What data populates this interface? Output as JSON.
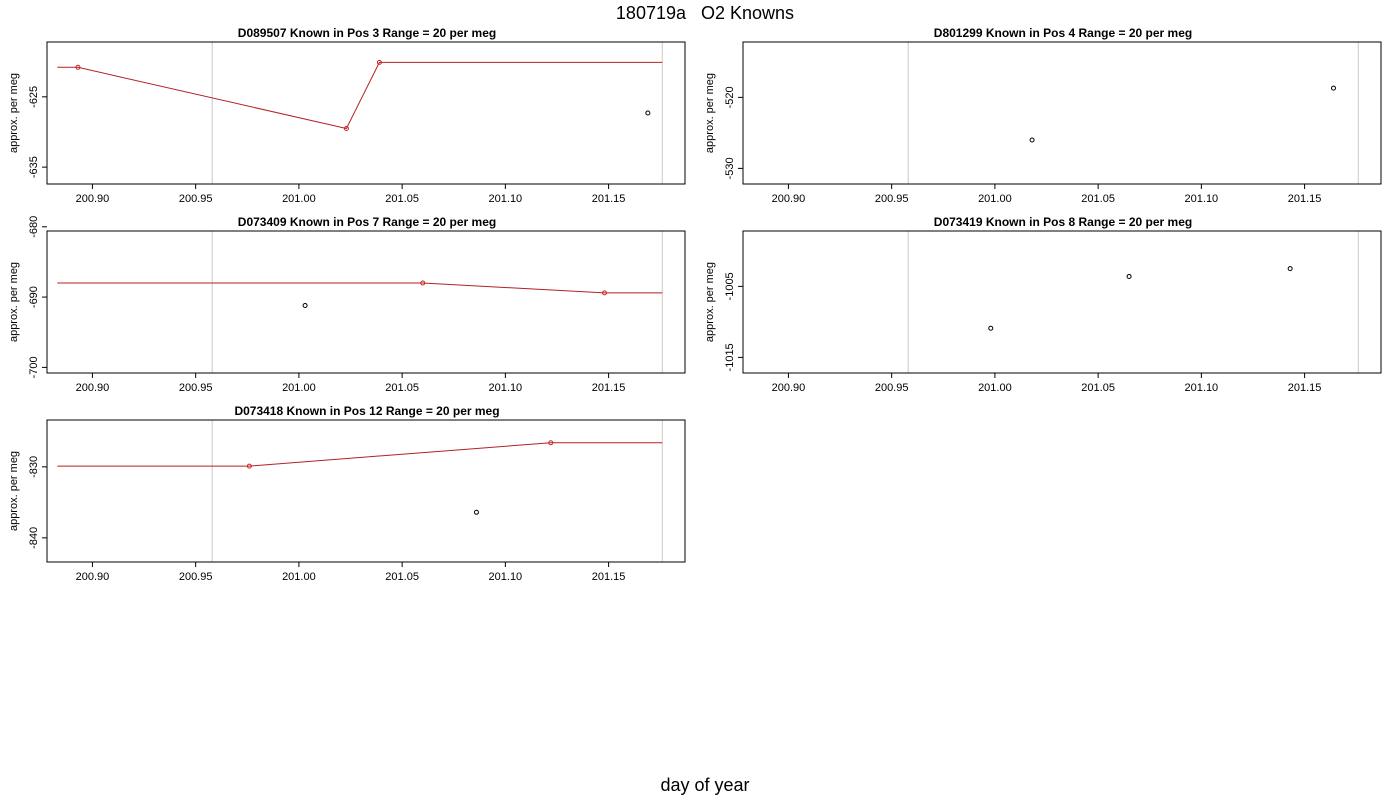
{
  "page": {
    "title": "180719a   O2 Knowns",
    "xlabel": "day of year"
  },
  "colors": {
    "line": "#b22222",
    "point_fit": "#cc2222",
    "point_meas": "#000000",
    "vline": "#c8c8c8",
    "axis": "#000000"
  },
  "chart_data": [
    {
      "type": "line",
      "title": "D089507    Known in Pos 3          Range = 20 per meg",
      "ylabel": "approx. per meg",
      "xlim": [
        200.878,
        201.187
      ],
      "ylim": [
        -637.4,
        -617.2
      ],
      "xticks": [
        "200.90",
        "200.95",
        "201.00",
        "201.05",
        "201.10",
        "201.15"
      ],
      "xtick_values": [
        200.9,
        200.95,
        201.0,
        201.05,
        201.1,
        201.15
      ],
      "yticks": [
        "-625",
        "-635"
      ],
      "ytick_values": [
        -625,
        -635
      ],
      "vlines": [
        200.958,
        201.176
      ],
      "line_x": [
        200.883,
        200.893,
        201.023,
        201.039,
        201.176
      ],
      "line_y": [
        -620.8,
        -620.8,
        -629.5,
        -620.1,
        -620.1
      ],
      "fit_points_x": [
        200.893,
        201.023,
        201.039
      ],
      "fit_points_y": [
        -620.8,
        -629.5,
        -620.1
      ],
      "meas_points_x": [
        201.169
      ],
      "meas_points_y": [
        -627.3
      ]
    },
    {
      "type": "scatter",
      "title": "D801299    Known in Pos 4          Range = 20 per meg",
      "ylabel": "approx. per meg",
      "xlim": [
        200.878,
        201.187
      ],
      "ylim": [
        -532.2,
        -512.2
      ],
      "xticks": [
        "200.90",
        "200.95",
        "201.00",
        "201.05",
        "201.10",
        "201.15"
      ],
      "xtick_values": [
        200.9,
        200.95,
        201.0,
        201.05,
        201.1,
        201.15
      ],
      "yticks": [
        "-520",
        "-530"
      ],
      "ytick_values": [
        -520,
        -530
      ],
      "vlines": [
        200.958,
        201.176
      ],
      "line_x": [],
      "line_y": [],
      "fit_points_x": [],
      "fit_points_y": [],
      "meas_points_x": [
        201.018,
        201.164
      ],
      "meas_points_y": [
        -526.0,
        -518.7
      ]
    },
    {
      "type": "line",
      "title": "D073409    Known in Pos 7          Range = 20 per meg",
      "ylabel": "approx. per meg",
      "xlim": [
        200.878,
        201.187
      ],
      "ylim": [
        -700.8,
        -680.6
      ],
      "xticks": [
        "200.90",
        "200.95",
        "201.00",
        "201.05",
        "201.10",
        "201.15"
      ],
      "xtick_values": [
        200.9,
        200.95,
        201.0,
        201.05,
        201.1,
        201.15
      ],
      "yticks": [
        "-680",
        "-690",
        "-700"
      ],
      "ytick_values": [
        -680,
        -690,
        -700
      ],
      "vlines": [
        200.958,
        201.176
      ],
      "line_x": [
        200.883,
        201.06,
        201.148,
        201.176
      ],
      "line_y": [
        -688.0,
        -688.0,
        -689.4,
        -689.4
      ],
      "fit_points_x": [
        201.06,
        201.148
      ],
      "fit_points_y": [
        -688.0,
        -689.4
      ],
      "meas_points_x": [
        201.003
      ],
      "meas_points_y": [
        -691.2
      ]
    },
    {
      "type": "scatter",
      "title": "D073419    Known in Pos 8          Range = 20 per meg",
      "ylabel": "approx. per meg",
      "xlim": [
        200.878,
        201.187
      ],
      "ylim": [
        -1017.2,
        -997.2
      ],
      "xticks": [
        "200.90",
        "200.95",
        "201.00",
        "201.05",
        "201.10",
        "201.15"
      ],
      "xtick_values": [
        200.9,
        200.95,
        201.0,
        201.05,
        201.1,
        201.15
      ],
      "yticks": [
        "-1005",
        "-1015"
      ],
      "ytick_values": [
        -1005,
        -1015
      ],
      "vlines": [
        200.958,
        201.176
      ],
      "line_x": [],
      "line_y": [],
      "fit_points_x": [],
      "fit_points_y": [],
      "meas_points_x": [
        200.998,
        201.065,
        201.143
      ],
      "meas_points_y": [
        -1010.9,
        -1003.6,
        -1002.5
      ]
    },
    {
      "type": "line",
      "title": "D073418    Known in Pos 12          Range = 20 per meg",
      "ylabel": "approx. per meg",
      "xlim": [
        200.878,
        201.187
      ],
      "ylim": [
        -843.4,
        -823.4
      ],
      "xticks": [
        "200.90",
        "200.95",
        "201.00",
        "201.05",
        "201.10",
        "201.15"
      ],
      "xtick_values": [
        200.9,
        200.95,
        201.0,
        201.05,
        201.1,
        201.15
      ],
      "yticks": [
        "-830",
        "-840"
      ],
      "ytick_values": [
        -830,
        -840
      ],
      "vlines": [
        200.958,
        201.176
      ],
      "line_x": [
        200.883,
        200.976,
        201.122,
        201.176
      ],
      "line_y": [
        -829.9,
        -829.9,
        -826.6,
        -826.6
      ],
      "fit_points_x": [
        200.976,
        201.122
      ],
      "fit_points_y": [
        -829.9,
        -826.6
      ],
      "meas_points_x": [
        201.086
      ],
      "meas_points_y": [
        -836.4
      ]
    }
  ]
}
